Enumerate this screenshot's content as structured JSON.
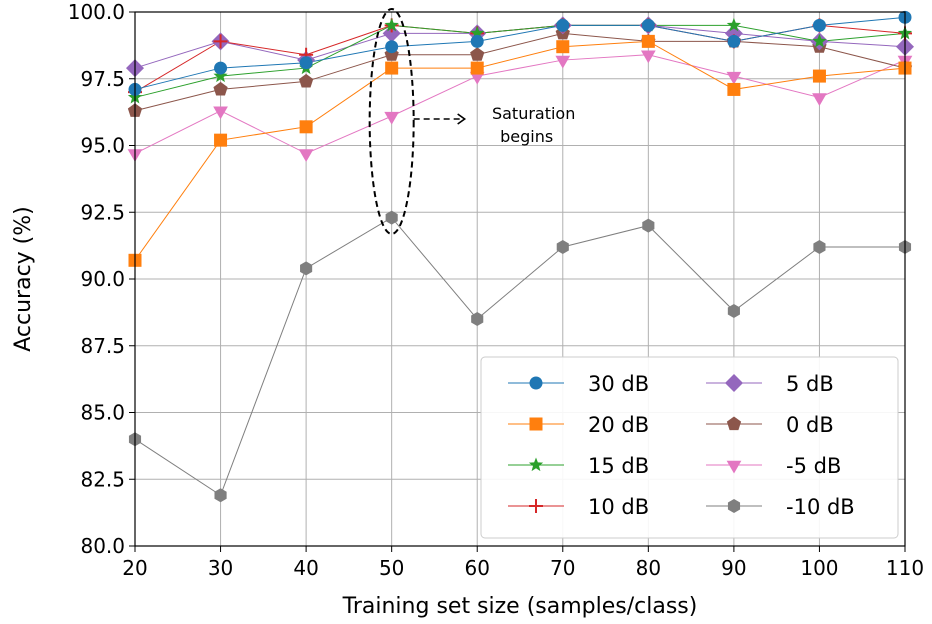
{
  "chart_data": {
    "type": "line",
    "xlabel": "Training set size (samples/class)",
    "ylabel": "Accuracy (%)",
    "xlim": [
      20,
      110
    ],
    "ylim": [
      80.0,
      100.0
    ],
    "x_ticks": [
      20,
      30,
      40,
      50,
      60,
      70,
      80,
      90,
      100,
      110
    ],
    "y_ticks": [
      "80.0",
      "82.5",
      "85.0",
      "87.5",
      "90.0",
      "92.5",
      "95.0",
      "97.5",
      "100.0"
    ],
    "grid": true,
    "legend_placement": "lower-right",
    "legend_columns": 2,
    "x": [
      20,
      30,
      40,
      50,
      60,
      70,
      80,
      90,
      100,
      110
    ],
    "series": [
      {
        "name": "30 dB",
        "color": "#1f77b4",
        "marker": "circle",
        "values": [
          97.1,
          97.9,
          98.1,
          98.7,
          98.9,
          99.5,
          99.5,
          98.9,
          99.5,
          99.8
        ]
      },
      {
        "name": "20 dB",
        "color": "#ff7f0e",
        "marker": "square",
        "values": [
          90.7,
          95.2,
          95.7,
          97.9,
          97.9,
          98.7,
          98.9,
          97.1,
          97.6,
          97.9
        ]
      },
      {
        "name": "15 dB",
        "color": "#2ca02c",
        "marker": "star",
        "values": [
          96.8,
          97.6,
          97.9,
          99.5,
          99.2,
          99.5,
          99.5,
          99.5,
          98.9,
          99.2
        ]
      },
      {
        "name": "10 dB",
        "color": "#d62728",
        "marker": "plus",
        "values": [
          97.0,
          98.9,
          98.4,
          99.5,
          99.2,
          99.5,
          99.5,
          98.9,
          99.5,
          99.2
        ]
      },
      {
        "name": "5 dB",
        "color": "#9467bd",
        "marker": "diamond",
        "values": [
          97.9,
          98.9,
          98.2,
          99.2,
          99.2,
          99.5,
          99.5,
          99.2,
          98.9,
          98.7
        ]
      },
      {
        "name": "0 dB",
        "color": "#8c564b",
        "marker": "pentagon",
        "values": [
          96.3,
          97.1,
          97.4,
          98.4,
          98.4,
          99.2,
          98.9,
          98.9,
          98.7,
          97.9
        ]
      },
      {
        "name": "-5 dB",
        "color": "#e377c2",
        "marker": "triangle-down",
        "values": [
          94.7,
          96.3,
          94.7,
          96.1,
          97.6,
          98.2,
          98.4,
          97.6,
          96.8,
          98.2
        ]
      },
      {
        "name": "-10 dB",
        "color": "#7f7f7f",
        "marker": "hexagon",
        "values": [
          84.0,
          81.9,
          90.4,
          92.3,
          88.5,
          91.2,
          92.0,
          88.8,
          91.2,
          91.2
        ]
      }
    ],
    "annotation": {
      "text_line1": "Saturation",
      "text_line2": "begins",
      "x": 50,
      "y_range": [
        91.8,
        100.0
      ]
    }
  }
}
